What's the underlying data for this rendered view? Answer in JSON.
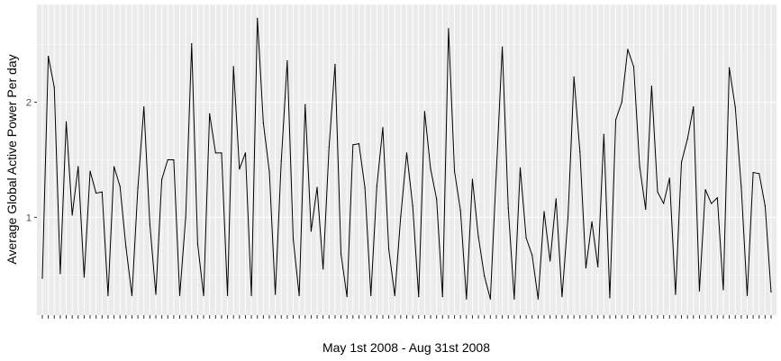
{
  "chart_data": {
    "type": "line",
    "title": "",
    "xlabel": "May 1st 2008 - Aug 31st 2008",
    "ylabel": "Average Global Active Power Per day",
    "ylim": [
      0.15,
      2.85
    ],
    "yticks": [
      1,
      2
    ],
    "ytick_labels": [
      "1",
      "2"
    ],
    "x_start": "2008-05-01",
    "x_end": "2008-08-31",
    "grid": true,
    "legend": "none",
    "colors": {
      "panel": "#ebebeb",
      "grid": "#ffffff",
      "line": "#000000",
      "ticks": "#333333"
    },
    "series": [
      {
        "values": [
          0.47,
          2.4,
          2.13,
          0.51,
          1.83,
          1.02,
          1.44,
          0.48,
          1.4,
          1.21,
          1.22,
          0.32,
          1.44,
          1.27,
          0.74,
          0.32,
          1.26,
          1.96,
          0.94,
          0.33,
          1.33,
          1.5,
          1.5,
          0.32,
          1.0,
          2.51,
          0.77,
          0.32,
          1.9,
          1.56,
          1.56,
          0.32,
          2.31,
          1.42,
          1.56,
          0.32,
          2.73,
          1.82,
          1.4,
          0.33,
          1.49,
          2.36,
          0.81,
          0.32,
          1.98,
          0.88,
          1.26,
          0.55,
          1.61,
          2.33,
          0.68,
          0.31,
          1.63,
          1.64,
          1.26,
          0.32,
          1.27,
          1.78,
          0.72,
          0.32,
          1.01,
          1.56,
          1.1,
          0.31,
          1.92,
          1.42,
          1.16,
          0.31,
          2.64,
          1.4,
          1.06,
          0.29,
          1.33,
          0.83,
          0.49,
          0.29,
          1.39,
          2.48,
          1.08,
          0.29,
          1.43,
          0.82,
          0.67,
          0.29,
          1.05,
          0.62,
          1.16,
          0.31,
          1.0,
          2.22,
          1.57,
          0.56,
          0.96,
          0.57,
          1.72,
          0.3,
          1.85,
          2.0,
          2.46,
          2.31,
          1.44,
          1.07,
          2.14,
          1.22,
          1.12,
          1.34,
          0.33,
          1.48,
          1.68,
          1.96,
          0.36,
          1.24,
          1.12,
          1.17,
          0.37,
          2.3,
          1.96,
          1.27,
          0.32,
          1.39,
          1.38,
          1.1,
          0.35
        ]
      }
    ]
  }
}
